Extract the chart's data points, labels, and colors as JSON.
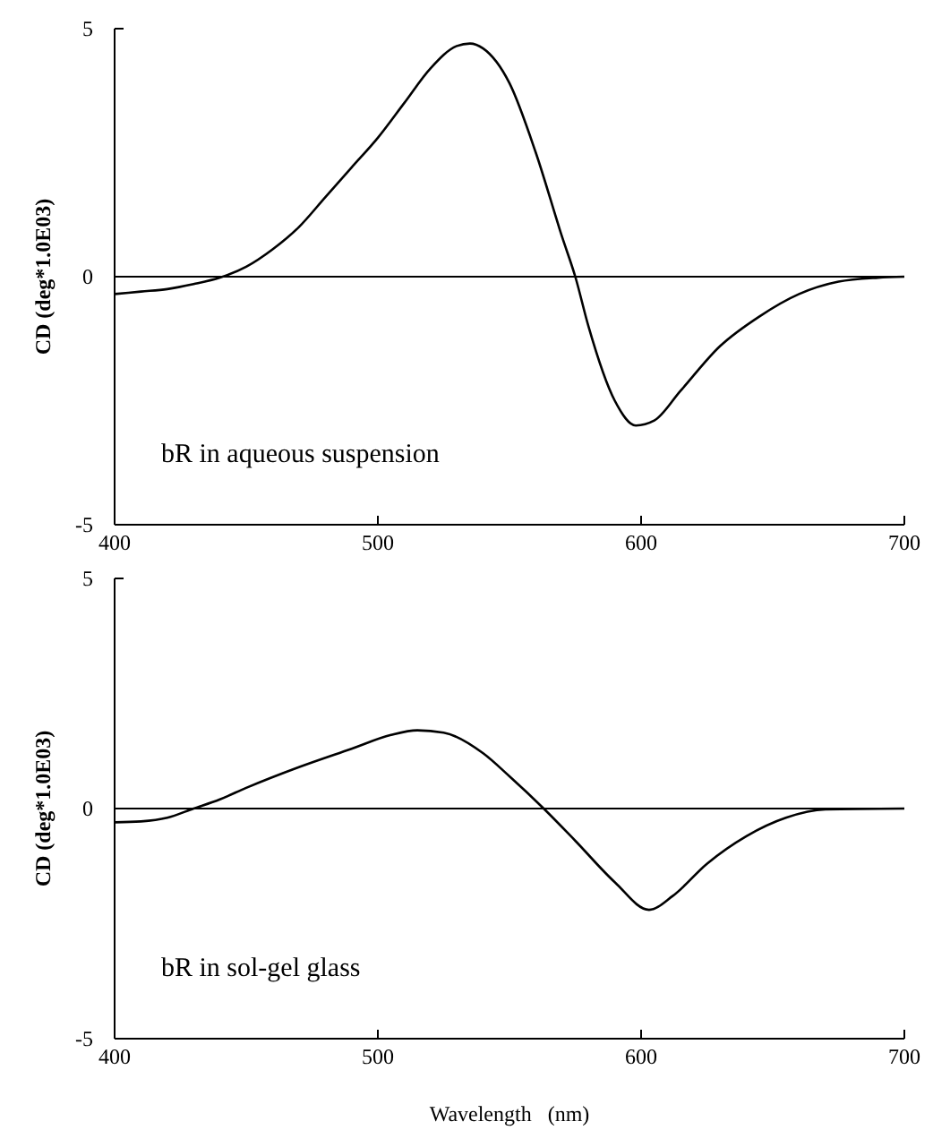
{
  "chart_data": [
    {
      "type": "line",
      "ylabel": "CD (deg*1.0E03)",
      "annotations": [
        "bR in aqueous suspension"
      ],
      "xlim": [
        400,
        700
      ],
      "xticks": [
        400,
        500,
        600,
        700
      ],
      "ylim": [
        -5,
        5
      ],
      "yticks": [
        -5,
        0,
        5
      ],
      "ref_lines": [
        {
          "axis": "y",
          "value": 0,
          "color": "#000000"
        }
      ],
      "marker": "none",
      "line_style": "solid",
      "series": [
        {
          "color": "#000000",
          "x": [
            400,
            410,
            420,
            430,
            440,
            450,
            460,
            470,
            480,
            490,
            500,
            510,
            520,
            530,
            535,
            540,
            550,
            560,
            570,
            575,
            580,
            590,
            598,
            605,
            615,
            630,
            645,
            660,
            675,
            690,
            700
          ],
          "values": [
            -0.35,
            -0.3,
            -0.25,
            -0.15,
            -0.02,
            0.2,
            0.55,
            1.0,
            1.6,
            2.2,
            2.8,
            3.5,
            4.2,
            4.65,
            4.7,
            4.6,
            3.9,
            2.5,
            0.8,
            0,
            -1.0,
            -2.5,
            -3.0,
            -2.9,
            -2.3,
            -1.4,
            -0.8,
            -0.35,
            -0.1,
            -0.02,
            0
          ]
        }
      ]
    },
    {
      "type": "line",
      "ylabel": "CD (deg*1.0E03)",
      "xlabel": "Wavelength   (nm)",
      "annotations": [
        "bR in sol-gel glass"
      ],
      "xlim": [
        400,
        700
      ],
      "xticks": [
        400,
        500,
        600,
        700
      ],
      "ylim": [
        -5,
        5
      ],
      "yticks": [
        -5,
        0,
        5
      ],
      "ref_lines": [
        {
          "axis": "y",
          "value": 0,
          "color": "#000000"
        }
      ],
      "marker": "none",
      "line_style": "solid",
      "series": [
        {
          "color": "#000000",
          "x": [
            400,
            410,
            420,
            430,
            440,
            450,
            470,
            490,
            505,
            515,
            525,
            540,
            550,
            563,
            575,
            590,
            603,
            612,
            625,
            640,
            655,
            670,
            700
          ],
          "values": [
            -0.3,
            -0.28,
            -0.2,
            0,
            0.2,
            0.45,
            0.9,
            1.3,
            1.6,
            1.7,
            1.65,
            1.2,
            0.7,
            0,
            -0.7,
            -1.6,
            -2.2,
            -1.9,
            -1.2,
            -0.6,
            -0.2,
            -0.02,
            0
          ]
        }
      ]
    }
  ]
}
